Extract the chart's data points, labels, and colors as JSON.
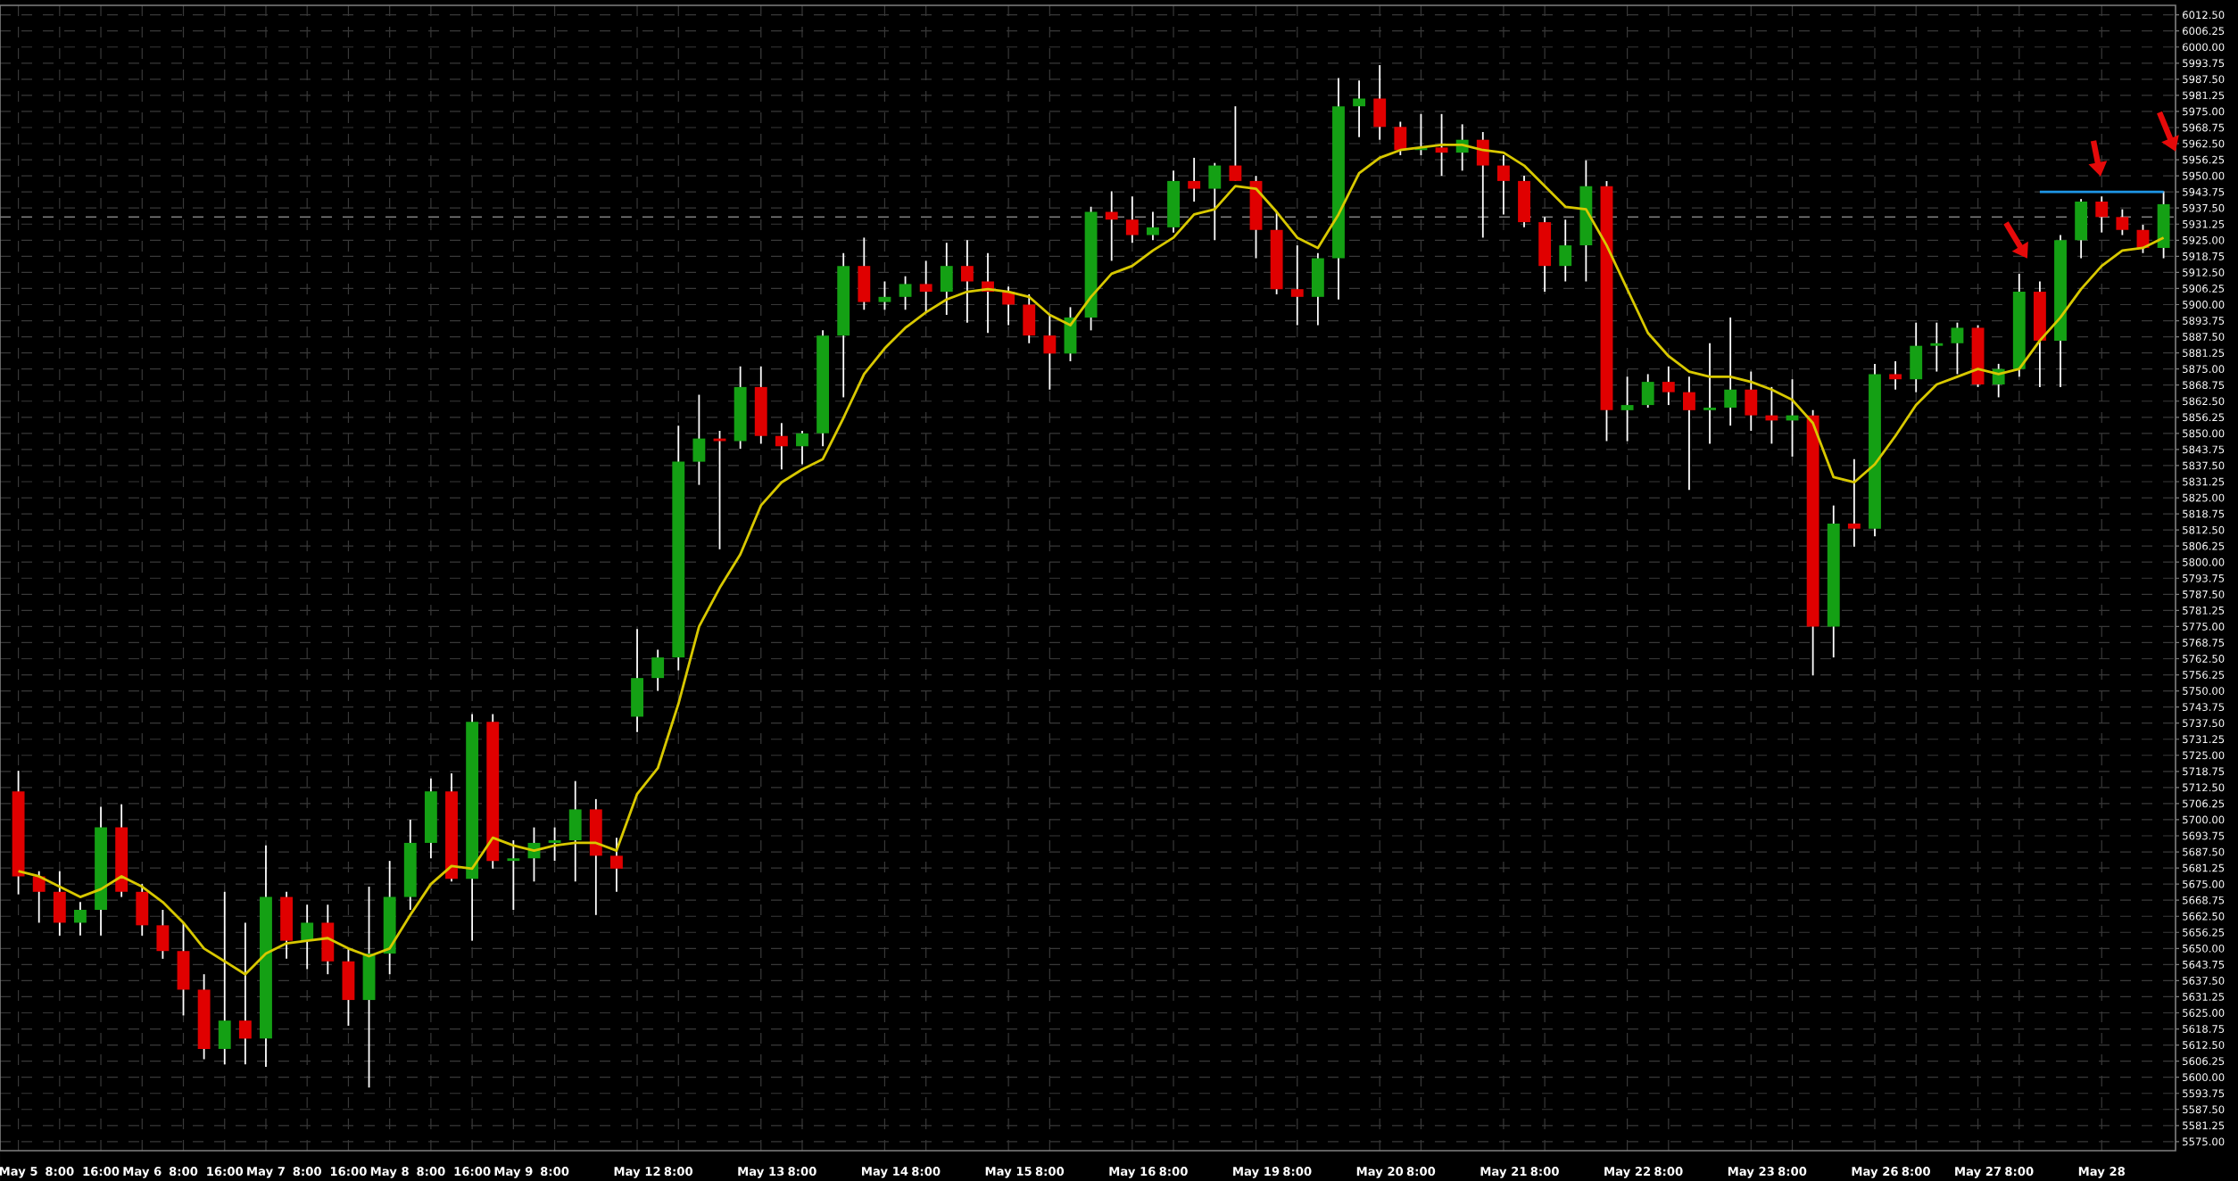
{
  "chart_data": {
    "type": "candlestick",
    "categories": [
      "May 5",
      null,
      "8:00",
      null,
      "16:00",
      null,
      "May 6",
      null,
      "8:00",
      null,
      "16:00",
      null,
      "May 7",
      null,
      "8:00",
      null,
      "16:00",
      null,
      "May 8",
      null,
      "8:00",
      null,
      "16:00",
      null,
      "May 9",
      null,
      "8:00",
      null,
      null,
      null,
      "May 12",
      null,
      "8:00",
      null,
      null,
      null,
      "May 13",
      null,
      "8:00",
      null,
      null,
      null,
      "May 14",
      null,
      "8:00",
      null,
      null,
      null,
      "May 15",
      null,
      "8:00",
      null,
      null,
      null,
      "May 16",
      null,
      "8:00",
      null,
      null,
      null,
      "May 19",
      null,
      "8:00",
      null,
      null,
      null,
      "May 20",
      null,
      "8:00",
      null,
      null,
      null,
      "May 21",
      null,
      "8:00",
      null,
      null,
      null,
      "May 22",
      null,
      "8:00",
      null,
      null,
      null,
      "May 23",
      null,
      "8:00",
      null,
      null,
      null,
      "May 26",
      null,
      "8:00",
      null,
      null,
      "May 27",
      null,
      "8:00",
      null,
      null,
      null,
      "May 28",
      null,
      null,
      null
    ],
    "ohlc": [
      [
        5711,
        5719,
        5671,
        5678
      ],
      [
        5678,
        5680,
        5660,
        5672
      ],
      [
        5672,
        5680,
        5655,
        5660
      ],
      [
        5660,
        5668,
        5655,
        5665
      ],
      [
        5665,
        5705,
        5655,
        5697
      ],
      [
        5697,
        5706,
        5670,
        5672
      ],
      [
        5672,
        5675,
        5655,
        5659
      ],
      [
        5659,
        5665,
        5646,
        5649
      ],
      [
        5649,
        5660,
        5624,
        5634
      ],
      [
        5634,
        5640,
        5607,
        5611
      ],
      [
        5611,
        5672,
        5605,
        5622
      ],
      [
        5622,
        5660,
        5605,
        5615
      ],
      [
        5615,
        5690,
        5604,
        5670
      ],
      [
        5670,
        5672,
        5646,
        5653
      ],
      [
        5653,
        5667,
        5642,
        5660
      ],
      [
        5660,
        5667,
        5640,
        5645
      ],
      [
        5645,
        5650,
        5620,
        5630
      ],
      [
        5630,
        5674,
        5596,
        5648
      ],
      [
        5648,
        5684,
        5640,
        5670
      ],
      [
        5670,
        5700,
        5665,
        5691
      ],
      [
        5691,
        5716,
        5685,
        5711
      ],
      [
        5711,
        5718,
        5676,
        5677
      ],
      [
        5677,
        5741,
        5653,
        5738
      ],
      [
        5738,
        5741,
        5681,
        5684
      ],
      [
        5684,
        5692,
        5665,
        5685
      ],
      [
        5685,
        5697,
        5676,
        5691
      ],
      [
        5691,
        5697,
        5684,
        5692
      ],
      [
        5692,
        5715,
        5676,
        5704
      ],
      [
        5704,
        5708,
        5663,
        5686
      ],
      [
        5686,
        5693,
        5672,
        5681
      ],
      [
        5740,
        5774,
        5734,
        5755
      ],
      [
        5755,
        5766,
        5750,
        5763
      ],
      [
        5763,
        5853,
        5758,
        5839
      ],
      [
        5839,
        5865,
        5830,
        5848
      ],
      [
        5848,
        5851,
        5805,
        5847
      ],
      [
        5847,
        5876,
        5844,
        5868
      ],
      [
        5868,
        5876,
        5846,
        5849
      ],
      [
        5849,
        5854,
        5836,
        5845
      ],
      [
        5845,
        5851,
        5838,
        5850
      ],
      [
        5850,
        5890,
        5845,
        5888
      ],
      [
        5888,
        5920,
        5864,
        5915
      ],
      [
        5915,
        5926,
        5898,
        5901
      ],
      [
        5901,
        5909,
        5898,
        5903
      ],
      [
        5903,
        5911,
        5898,
        5908
      ],
      [
        5908,
        5917,
        5897,
        5905
      ],
      [
        5905,
        5924,
        5896,
        5915
      ],
      [
        5915,
        5925,
        5893,
        5909
      ],
      [
        5909,
        5920,
        5889,
        5905
      ],
      [
        5905,
        5907,
        5892,
        5900
      ],
      [
        5900,
        5904,
        5885,
        5888
      ],
      [
        5888,
        5896,
        5867,
        5881
      ],
      [
        5881,
        5899,
        5878,
        5895
      ],
      [
        5895,
        5938,
        5890,
        5936
      ],
      [
        5936,
        5944,
        5917,
        5933
      ],
      [
        5933,
        5942,
        5924,
        5927
      ],
      [
        5927,
        5936,
        5925,
        5930
      ],
      [
        5930,
        5952,
        5928,
        5948
      ],
      [
        5948,
        5957,
        5940,
        5945
      ],
      [
        5945,
        5955,
        5925,
        5954
      ],
      [
        5954,
        5977,
        5948,
        5948
      ],
      [
        5948,
        5950,
        5918,
        5929
      ],
      [
        5929,
        5936,
        5904,
        5906
      ],
      [
        5906,
        5923,
        5892,
        5903
      ],
      [
        5903,
        5920,
        5892,
        5918
      ],
      [
        5918,
        5988,
        5902,
        5977
      ],
      [
        5977,
        5987,
        5965,
        5980
      ],
      [
        5980,
        5993,
        5964,
        5969
      ],
      [
        5969,
        5971,
        5958,
        5960
      ],
      [
        5960,
        5974,
        5958,
        5961
      ],
      [
        5961,
        5974,
        5950,
        5959
      ],
      [
        5959,
        5970,
        5952,
        5964
      ],
      [
        5964,
        5967,
        5926,
        5954
      ],
      [
        5954,
        5958,
        5935,
        5948
      ],
      [
        5948,
        5950,
        5930,
        5932
      ],
      [
        5932,
        5934,
        5905,
        5915
      ],
      [
        5915,
        5933,
        5909,
        5923
      ],
      [
        5923,
        5956,
        5909,
        5946
      ],
      [
        5946,
        5948,
        5847,
        5859
      ],
      [
        5859,
        5872,
        5847,
        5861
      ],
      [
        5861,
        5873,
        5860,
        5870
      ],
      [
        5870,
        5876,
        5861,
        5866
      ],
      [
        5866,
        5872,
        5828,
        5859
      ],
      [
        5859,
        5885,
        5846,
        5860
      ],
      [
        5860,
        5895,
        5853,
        5867
      ],
      [
        5867,
        5874,
        5851,
        5857
      ],
      [
        5857,
        5868,
        5846,
        5855
      ],
      [
        5855,
        5871,
        5841,
        5857
      ],
      [
        5857,
        5859,
        5756,
        5775
      ],
      [
        5775,
        5822,
        5763,
        5815
      ],
      [
        5815,
        5840,
        5806,
        5813
      ],
      [
        5813,
        5877,
        5810,
        5873
      ],
      [
        5873,
        5878,
        5867,
        5871
      ],
      [
        5871,
        5893,
        5866,
        5884
      ],
      [
        5884,
        5893,
        5874,
        5885
      ],
      [
        5885,
        5893,
        5873,
        5891
      ],
      [
        5891,
        5892,
        5868,
        5869
      ],
      [
        5869,
        5877,
        5864,
        5875
      ],
      [
        5875,
        5912,
        5872,
        5905
      ],
      [
        5905,
        5909,
        5868,
        5886
      ],
      [
        5886,
        5927,
        5868,
        5925
      ],
      [
        5925,
        5941,
        5918,
        5940
      ],
      [
        5940,
        5942,
        5928,
        5934
      ],
      [
        5934,
        5937,
        5927,
        5929
      ],
      [
        5929,
        5931,
        5920,
        5922
      ],
      [
        5922,
        5944,
        5918,
        5939
      ]
    ],
    "series": [
      {
        "type": "line",
        "color": "#d8c800",
        "values": [
          5680,
          5678,
          5674,
          5670,
          5673,
          5678,
          5674,
          5668,
          5660,
          5650,
          5645,
          5640,
          5648,
          5652,
          5653,
          5654,
          5650,
          5647,
          5650,
          5663,
          5675,
          5682,
          5681,
          5693,
          5690,
          5688,
          5690,
          5691,
          5691,
          5688,
          5710,
          5720,
          5745,
          5775,
          5790,
          5803,
          5822,
          5831,
          5836,
          5840,
          5856,
          5873,
          5883,
          5891,
          5897,
          5902,
          5905,
          5906,
          5905,
          5903,
          5896,
          5892,
          5903,
          5912,
          5915,
          5921,
          5926,
          5935,
          5937,
          5946,
          5945,
          5936,
          5926,
          5922,
          5935,
          5951,
          5957,
          5960,
          5961,
          5962,
          5962,
          5960,
          5959,
          5954,
          5946,
          5938,
          5937,
          5923,
          5906,
          5889,
          5880,
          5874,
          5872,
          5872,
          5870,
          5867,
          5863,
          5854,
          5833,
          5831,
          5838,
          5849,
          5861,
          5869,
          5872,
          5875,
          5873,
          5875,
          5886,
          5895,
          5906,
          5915,
          5921,
          5922,
          5926
        ]
      },
      {
        "type": "line",
        "color": "#1e96e6",
        "values": [
          null,
          null,
          null,
          null,
          null,
          null,
          null,
          null,
          null,
          null,
          null,
          null,
          null,
          null,
          null,
          null,
          null,
          null,
          null,
          null,
          null,
          null,
          null,
          null,
          null,
          null,
          null,
          null,
          null,
          null,
          null,
          null,
          null,
          null,
          null,
          null,
          null,
          null,
          null,
          null,
          null,
          null,
          null,
          null,
          null,
          null,
          null,
          null,
          null,
          null,
          null,
          null,
          null,
          null,
          null,
          null,
          null,
          null,
          null,
          null,
          null,
          null,
          null,
          null,
          null,
          null,
          null,
          null,
          null,
          null,
          null,
          null,
          null,
          null,
          null,
          null,
          null,
          null,
          null,
          null,
          null,
          null,
          null,
          null,
          null,
          null,
          null,
          null,
          null,
          null,
          null,
          null,
          null,
          null,
          null,
          null,
          null,
          null,
          5943.75,
          5943.75,
          5943.75,
          5943.75,
          5943.75,
          5943.75,
          5943.75
        ]
      }
    ],
    "ylim": [
      5571.5,
      6016.2
    ],
    "yticks": [
      {
        "value": 5575,
        "label": "5575.00"
      },
      {
        "value": 5581.25,
        "label": "5581.25"
      },
      {
        "value": 5587.5,
        "label": "5587.50"
      },
      {
        "value": 5593.75,
        "label": "5593.75"
      },
      {
        "value": 5600,
        "label": "5600.00"
      },
      {
        "value": 5606.25,
        "label": "5606.25"
      },
      {
        "value": 5612.5,
        "label": "5612.50"
      },
      {
        "value": 5618.75,
        "label": "5618.75"
      },
      {
        "value": 5625,
        "label": "5625.00"
      },
      {
        "value": 5631.25,
        "label": "5631.25"
      },
      {
        "value": 5637.5,
        "label": "5637.50"
      },
      {
        "value": 5643.75,
        "label": "5643.75"
      },
      {
        "value": 5650,
        "label": "5650.00"
      },
      {
        "value": 5656.25,
        "label": "5656.25"
      },
      {
        "value": 5662.5,
        "label": "5662.50"
      },
      {
        "value": 5668.75,
        "label": "5668.75"
      },
      {
        "value": 5675,
        "label": "5675.00"
      },
      {
        "value": 5681.25,
        "label": "5681.25"
      },
      {
        "value": 5687.5,
        "label": "5687.50"
      },
      {
        "value": 5693.75,
        "label": "5693.75"
      },
      {
        "value": 5700,
        "label": "5700.00"
      },
      {
        "value": 5706.25,
        "label": "5706.25"
      },
      {
        "value": 5712.5,
        "label": "5712.50"
      },
      {
        "value": 5718.75,
        "label": "5718.75"
      },
      {
        "value": 5725,
        "label": "5725.00"
      },
      {
        "value": 5731.25,
        "label": "5731.25"
      },
      {
        "value": 5737.5,
        "label": "5737.50"
      },
      {
        "value": 5743.75,
        "label": "5743.75"
      },
      {
        "value": 5750,
        "label": "5750.00"
      },
      {
        "value": 5756.25,
        "label": "5756.25"
      },
      {
        "value": 5762.5,
        "label": "5762.50"
      },
      {
        "value": 5768.75,
        "label": "5768.75"
      },
      {
        "value": 5775,
        "label": "5775.00"
      },
      {
        "value": 5781.25,
        "label": "5781.25"
      },
      {
        "value": 5787.5,
        "label": "5787.50"
      },
      {
        "value": 5793.75,
        "label": "5793.75"
      },
      {
        "value": 5800,
        "label": "5800.00"
      },
      {
        "value": 5806.25,
        "label": "5806.25"
      },
      {
        "value": 5812.5,
        "label": "5812.50"
      },
      {
        "value": 5818.75,
        "label": "5818.75"
      },
      {
        "value": 5825,
        "label": "5825.00"
      },
      {
        "value": 5831.25,
        "label": "5831.25"
      },
      {
        "value": 5837.5,
        "label": "5837.50"
      },
      {
        "value": 5843.75,
        "label": "5843.75"
      },
      {
        "value": 5850,
        "label": "5850.00"
      },
      {
        "value": 5856.25,
        "label": "5856.25"
      },
      {
        "value": 5862.5,
        "label": "5862.50"
      },
      {
        "value": 5868.75,
        "label": "5868.75"
      },
      {
        "value": 5875,
        "label": "5875.00"
      },
      {
        "value": 5881.25,
        "label": "5881.25"
      },
      {
        "value": 5887.5,
        "label": "5887.50"
      },
      {
        "value": 5893.75,
        "label": "5893.75"
      },
      {
        "value": 5900,
        "label": "5900.00"
      },
      {
        "value": 5906.25,
        "label": "5906.25"
      },
      {
        "value": 5912.5,
        "label": "5912.50"
      },
      {
        "value": 5918.75,
        "label": "5918.75"
      },
      {
        "value": 5925,
        "label": "5925.00"
      },
      {
        "value": 5931.25,
        "label": "5931.25"
      },
      {
        "value": 5937.5,
        "label": "5937.50"
      },
      {
        "value": 5943.75,
        "label": "5943.75"
      },
      {
        "value": 5950,
        "label": "5950.00"
      },
      {
        "value": 5956.25,
        "label": "5956.25"
      },
      {
        "value": 5962.5,
        "label": "5962.50"
      },
      {
        "value": 5968.75,
        "label": "5968.75"
      },
      {
        "value": 5975,
        "label": "5975.00"
      },
      {
        "value": 5981.25,
        "label": "5981.25"
      },
      {
        "value": 5987.5,
        "label": "5987.50"
      },
      {
        "value": 5993.75,
        "label": "5993.75"
      },
      {
        "value": 6000,
        "label": "6000.00"
      },
      {
        "value": 6006.25,
        "label": "6006.25"
      },
      {
        "value": 6012.5,
        "label": "6012.50"
      }
    ],
    "ref_lines": [
      {
        "axis": "y",
        "value": 5934,
        "color": "#808080",
        "line_style": "dashed"
      }
    ],
    "grid": true
  }
}
